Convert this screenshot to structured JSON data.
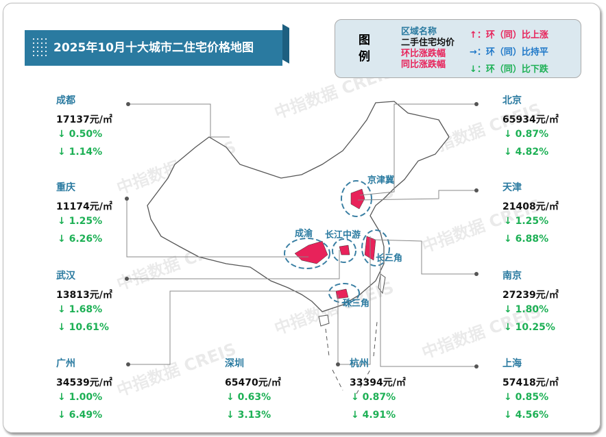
{
  "title": "2025年10月十大城市二住宅价格地图",
  "legend": {
    "heading": "图例",
    "name_label": "区域名称",
    "price_label": "二手住宅均价",
    "mom_label": "环比涨跌幅",
    "yoy_label": "同比涨跌幅",
    "up": "↑：环（同）比上涨",
    "flat": "→：环（同）比持平",
    "down": "↓：环（同）比下跌",
    "colors": {
      "name": "#2a7aa0",
      "up": "#e8225a",
      "flat": "#1f78c8",
      "down": "#1db055"
    }
  },
  "watermark": "中指数据 CREIS",
  "regions": [
    "京津冀",
    "成渝",
    "长江中游",
    "长三角",
    "珠三角"
  ],
  "cities": [
    {
      "name": "成都",
      "price": "17137元/㎡",
      "mom": "↓ 0.50%",
      "yoy": "↓ 1.14%"
    },
    {
      "name": "重庆",
      "price": "11174元/㎡",
      "mom": "↓ 1.25%",
      "yoy": "↓ 6.26%"
    },
    {
      "name": "武汉",
      "price": "13813元/㎡",
      "mom": "↓ 1.68%",
      "yoy": "↓ 10.61%"
    },
    {
      "name": "广州",
      "price": "34539元/㎡",
      "mom": "↓ 1.00%",
      "yoy": "↓ 6.49%"
    },
    {
      "name": "深圳",
      "price": "65470元/㎡",
      "mom": "↓ 0.63%",
      "yoy": "↓ 3.13%"
    },
    {
      "name": "杭州",
      "price": "33394元/㎡",
      "mom": "↓ 0.87%",
      "yoy": "↓ 4.91%"
    },
    {
      "name": "北京",
      "price": "65934元/㎡",
      "mom": "↓ 0.87%",
      "yoy": "↓ 4.82%"
    },
    {
      "name": "天津",
      "price": "21408元/㎡",
      "mom": "↓ 1.25%",
      "yoy": "↓ 6.88%"
    },
    {
      "name": "南京",
      "price": "27239元/㎡",
      "mom": "↓ 1.80%",
      "yoy": "↓ 10.25%"
    },
    {
      "name": "上海",
      "price": "57418元/㎡",
      "mom": "↓ 0.85%",
      "yoy": "↓ 4.56%"
    }
  ]
}
